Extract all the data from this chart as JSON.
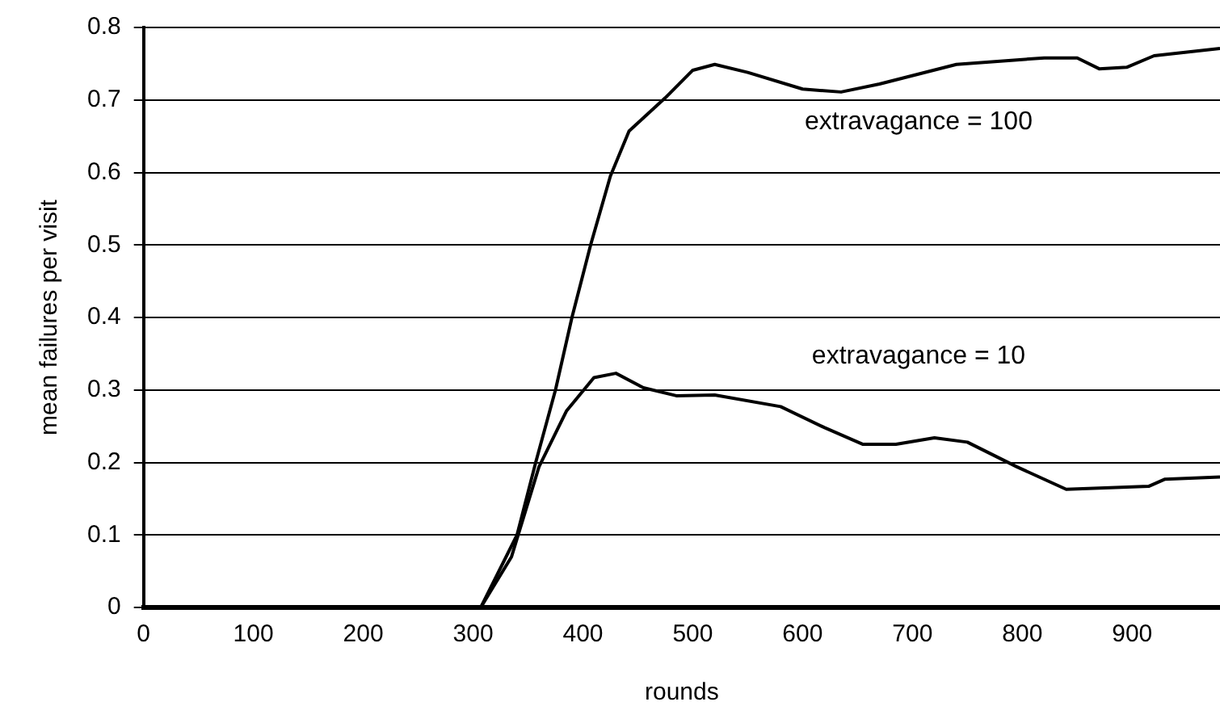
{
  "chart_data": {
    "type": "line",
    "xlabel": "rounds",
    "ylabel": "mean failures per visit",
    "xlim": [
      0,
      980
    ],
    "xticks": [
      0,
      100,
      200,
      300,
      400,
      500,
      600,
      700,
      800,
      900
    ],
    "ylim": [
      0,
      0.8
    ],
    "yticks": [
      0,
      0.1,
      0.2,
      0.3,
      0.4,
      0.5,
      0.6,
      0.7,
      0.8
    ],
    "grid": "y",
    "legend": false,
    "series": [
      {
        "name": "extravagance = 100",
        "color": "#000000",
        "x": [
          0,
          100,
          200,
          307,
          340,
          357,
          375,
          390,
          407,
          425,
          442,
          475,
          500,
          520,
          550,
          600,
          635,
          670,
          740,
          820,
          850,
          870,
          895,
          920,
          980
        ],
        "values": [
          0,
          0,
          0,
          0,
          0.1,
          0.2,
          0.3,
          0.4,
          0.5,
          0.595,
          0.657,
          0.703,
          0.741,
          0.749,
          0.738,
          0.715,
          0.711,
          0.722,
          0.749,
          0.758,
          0.758,
          0.743,
          0.745,
          0.761,
          0.771
        ]
      },
      {
        "name": "extravagance = 10",
        "color": "#000000",
        "x": [
          0,
          100,
          200,
          307,
          335,
          360,
          385,
          410,
          430,
          455,
          485,
          520,
          580,
          620,
          655,
          685,
          720,
          750,
          795,
          840,
          915,
          930,
          980
        ],
        "values": [
          0,
          0,
          0,
          0,
          0.07,
          0.194,
          0.271,
          0.317,
          0.323,
          0.303,
          0.292,
          0.293,
          0.277,
          0.248,
          0.225,
          0.225,
          0.234,
          0.228,
          0.194,
          0.163,
          0.167,
          0.177,
          0.18
        ]
      }
    ]
  }
}
